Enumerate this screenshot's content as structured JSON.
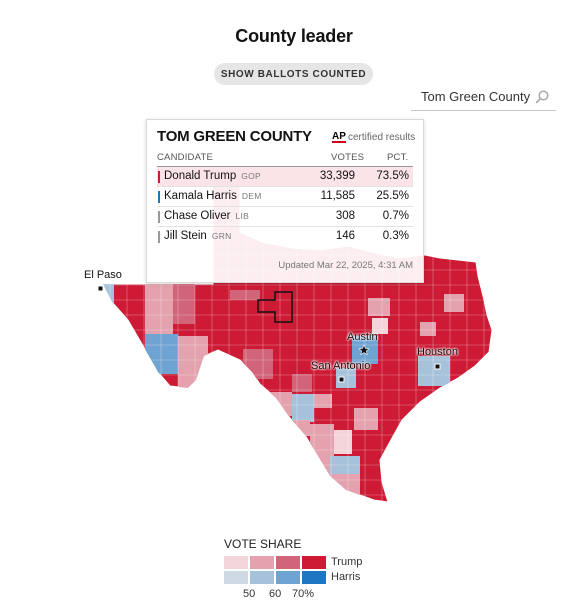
{
  "header": {
    "title": "County leader",
    "show_ballots_label": "SHOW BALLOTS COUNTED"
  },
  "search": {
    "value": "Tom Green County",
    "icon": "search-icon"
  },
  "tooltip": {
    "county": "TOM GREEN COUNTY",
    "ap_badge": "AP",
    "certified": "certified results",
    "col_candidate": "CANDIDATE",
    "col_votes": "VOTES",
    "col_pct": "PCT.",
    "rows": [
      {
        "name": "Donald Trump",
        "party": "GOP",
        "votes": "33,399",
        "pct": "73.5%",
        "color": "#cd1a35"
      },
      {
        "name": "Kamala Harris",
        "party": "DEM",
        "votes": "11,585",
        "pct": "25.5%",
        "color": "#1f77b4"
      },
      {
        "name": "Chase Oliver",
        "party": "LIB",
        "votes": "308",
        "pct": "0.7%",
        "color": "#999999"
      },
      {
        "name": "Jill Stein",
        "party": "GRN",
        "votes": "146",
        "pct": "0.3%",
        "color": "#999999"
      }
    ],
    "updated": "Updated Mar 22, 2025, 4:31 AM"
  },
  "cities": [
    {
      "name": "El Paso"
    },
    {
      "name": "Austin"
    },
    {
      "name": "San Antonio"
    },
    {
      "name": "Houston"
    }
  ],
  "legend": {
    "title": "VOTE SHARE",
    "trump_label": "Trump",
    "harris_label": "Harris",
    "ticks": [
      "50",
      "60",
      "70%"
    ],
    "trump_colors": [
      "#f2d4da",
      "#e3a2ae",
      "#d2647a",
      "#cd1a35"
    ],
    "harris_colors": [
      "#cfd9e3",
      "#a5c2da",
      "#6fa3d1",
      "#1f77c4"
    ]
  },
  "colors": {
    "trump_solid": "#cd1a35",
    "trump_mid": "#d2647a",
    "trump_light": "#e3a2ae",
    "harris_light": "#a5c2da",
    "harris_mid": "#6fa3d1",
    "harris_solid": "#1f77c4"
  }
}
